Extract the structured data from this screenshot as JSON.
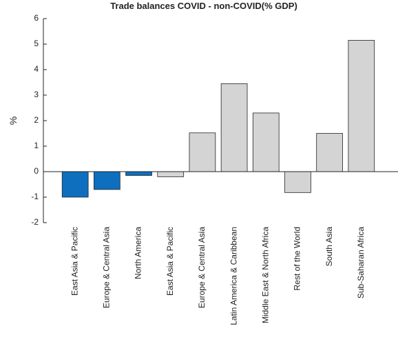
{
  "chart_data": {
    "type": "bar",
    "title": "Trade balances COVID - non-COVID(% GDP)",
    "y_label": "%",
    "categories": [
      "East Asia & Pacific",
      "Europe & Central Asia",
      "North America",
      "East Asia & Pacific",
      "Europe & Central Asia",
      "Latin America & Caribbean",
      "Middle East & North Africa",
      "Rest of the World",
      "South Asia",
      "Sub-Saharan Africa"
    ],
    "values": [
      -1.0,
      -0.7,
      -0.15,
      -0.2,
      1.52,
      3.45,
      2.3,
      -0.82,
      1.5,
      5.15
    ],
    "colors": [
      "#0e6fbe",
      "#0e6fbe",
      "#0e6fbe",
      "#d4d4d4",
      "#d4d4d4",
      "#d4d4d4",
      "#d4d4d4",
      "#d4d4d4",
      "#d4d4d4",
      "#d4d4d4"
    ],
    "ylim": [
      -2,
      6
    ],
    "yticks": [
      -2,
      -1,
      0,
      1,
      2,
      3,
      4,
      5,
      6
    ],
    "grid": false
  }
}
